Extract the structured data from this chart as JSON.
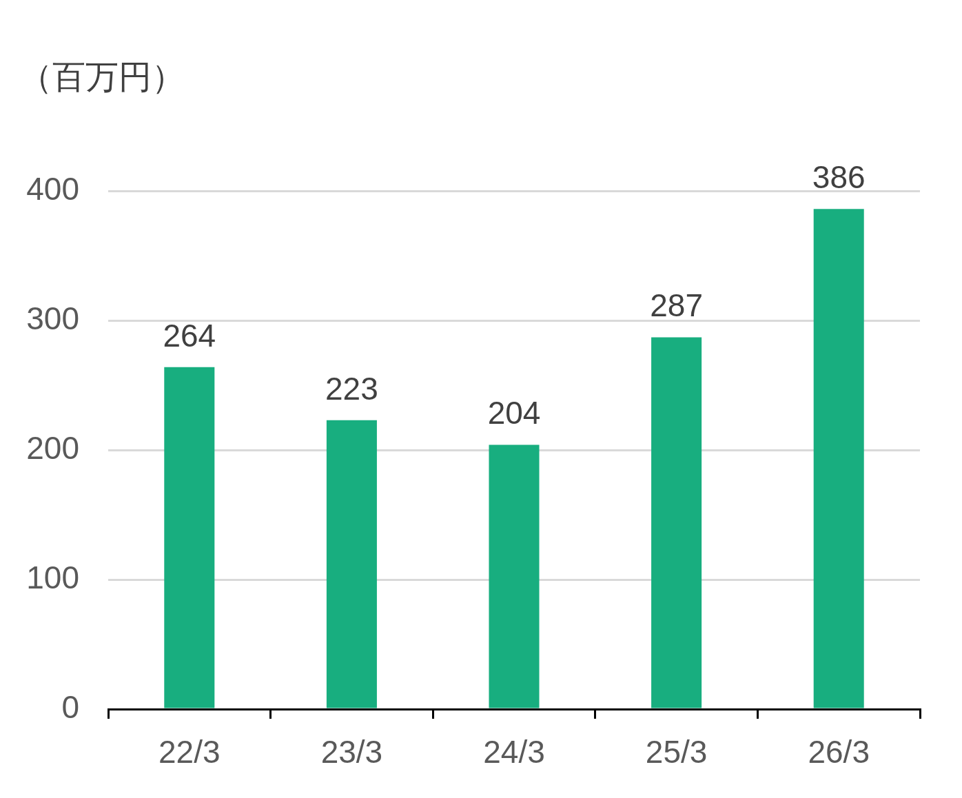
{
  "chart_data": {
    "type": "bar",
    "ylabel": "（百万円）",
    "categories": [
      "22/3",
      "23/3",
      "24/3",
      "25/3",
      "26/3"
    ],
    "series": [
      {
        "color": "#18ae7f",
        "values": [
          264,
          223,
          204,
          287,
          386
        ]
      }
    ],
    "ylim": [
      0,
      400
    ],
    "yticks": [
      0,
      100,
      200,
      300,
      400
    ],
    "grid": "y",
    "legend": false,
    "data_labels": true
  }
}
